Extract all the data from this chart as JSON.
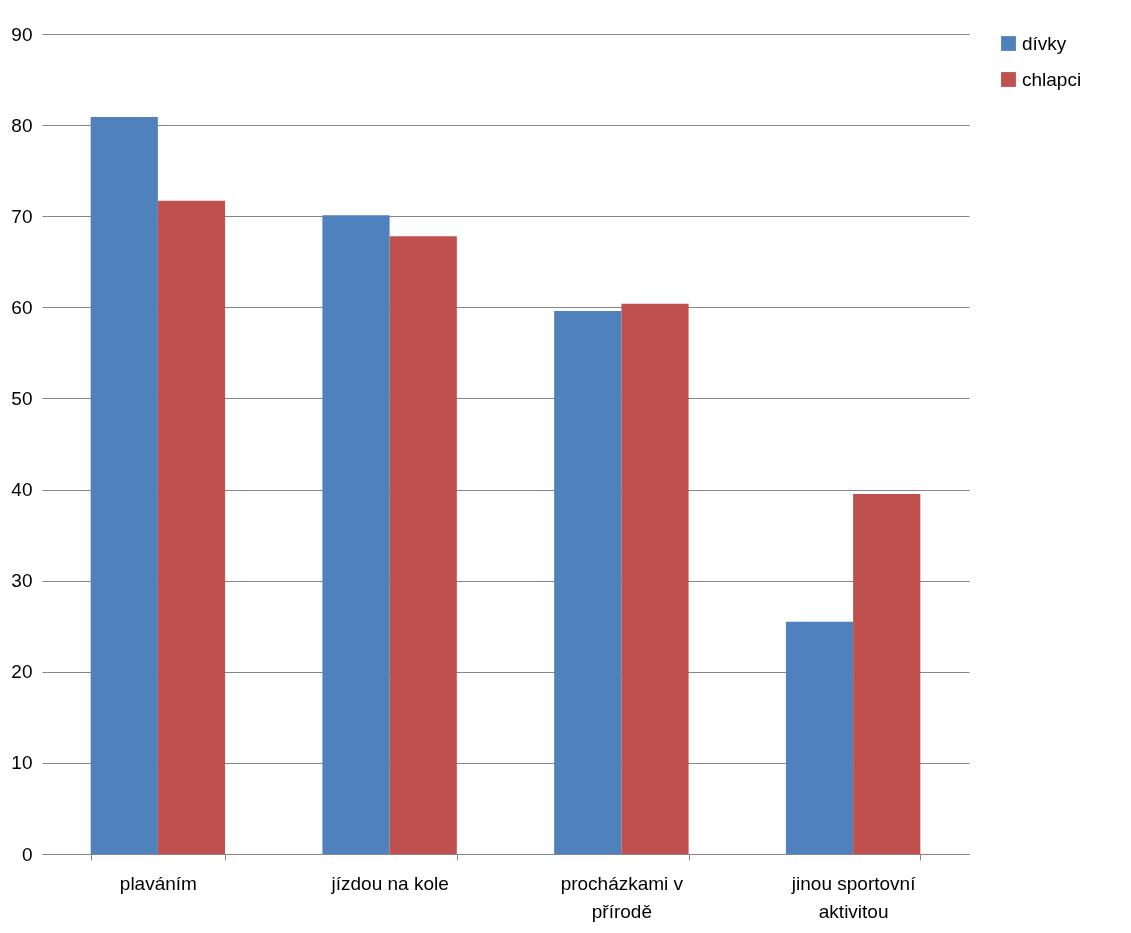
{
  "chart_data": {
    "type": "bar",
    "categories": [
      "plaváním",
      "jízdou na kole",
      "procházkami v přírodě",
      "jinou sportovní aktivitou"
    ],
    "series": [
      {
        "name": "dívky",
        "color": "#4f81bd",
        "values": [
          80.9,
          70.1,
          59.6,
          25.5
        ]
      },
      {
        "name": "chlapci",
        "color": "#c0504d",
        "values": [
          71.7,
          67.8,
          60.4,
          39.5
        ]
      }
    ],
    "ylim": [
      0,
      90
    ],
    "yticks": [
      0,
      10,
      20,
      30,
      40,
      50,
      60,
      70,
      80,
      90
    ],
    "grid": "y",
    "legend": "right"
  }
}
